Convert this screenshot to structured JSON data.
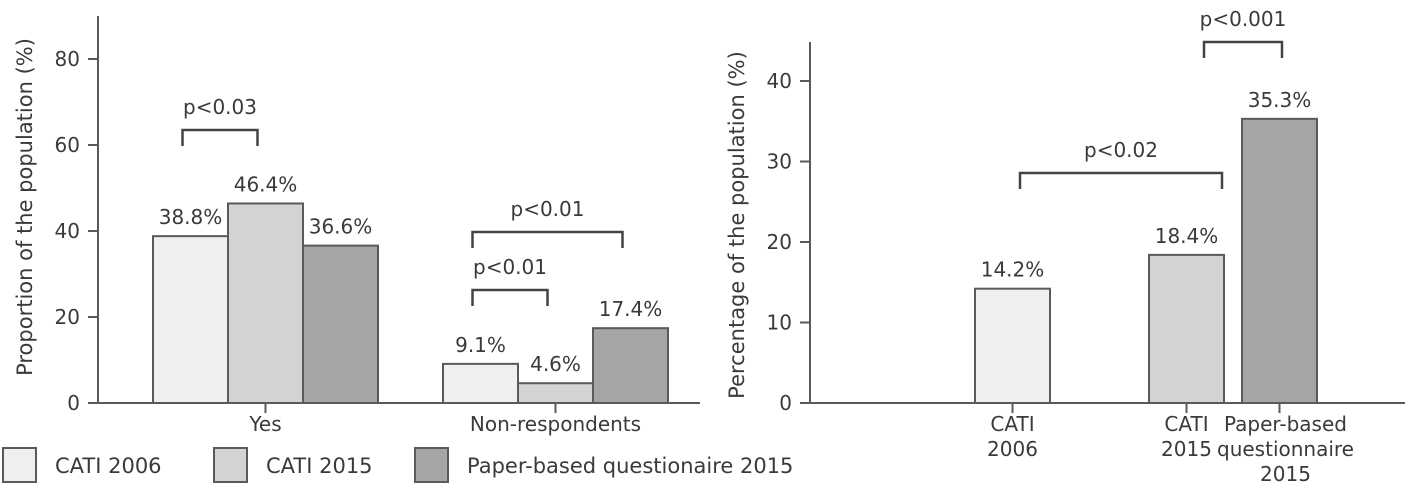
{
  "colors": {
    "series_fill": [
      "#efeff0",
      "#d3d3d4",
      "#a5a5a6"
    ],
    "stroke": "#5a5a5a",
    "text": "#3a3a3a"
  },
  "legend": [
    {
      "label": "CATI 2006"
    },
    {
      "label": "CATI 2015"
    },
    {
      "label": "Paper-based questionaire 2015"
    }
  ],
  "chart_data": [
    {
      "type": "bar",
      "ylabel": "Proportion of the population (%)",
      "xlabel": "",
      "ylim": [
        0,
        80
      ],
      "yticks": [
        "0",
        "20",
        "40",
        "60",
        "80"
      ],
      "categories": [
        "Yes",
        "Non-respondents"
      ],
      "series": [
        {
          "name": "CATI 2006",
          "values": [
            38.8,
            9.1
          ],
          "labels": [
            "38.8%",
            "9.1%"
          ]
        },
        {
          "name": "CATI 2015",
          "values": [
            46.4,
            4.6
          ],
          "labels": [
            "46.4%",
            "4.6%"
          ]
        },
        {
          "name": "Paper-based questionaire 2015",
          "values": [
            36.6,
            17.4
          ],
          "labels": [
            "36.6%",
            "17.4%"
          ]
        }
      ],
      "annotations": [
        {
          "text": "p<0.03",
          "category": "Yes",
          "from_series": 0,
          "to_series": 1
        },
        {
          "text": "p<0.01",
          "category": "Non-respondents",
          "from_series": 0,
          "to_series": 1
        },
        {
          "text": "p<0.01",
          "category": "Non-respondents",
          "from_series": 0,
          "to_series": 2
        }
      ]
    },
    {
      "type": "bar",
      "ylabel": "Percentage of the population (%)",
      "xlabel": "",
      "ylim": [
        0,
        40
      ],
      "yticks": [
        "0",
        "10",
        "20",
        "30",
        "40"
      ],
      "categories": [
        {
          "lines": [
            "CATI",
            "2006"
          ]
        },
        {
          "lines": [
            "CATI",
            "2015"
          ]
        },
        {
          "lines": [
            "Paper-based",
            "questionnaire",
            "2015"
          ]
        }
      ],
      "values": [
        14.2,
        18.4,
        35.3
      ],
      "labels": [
        "14.2%",
        "18.4%",
        "35.3%"
      ],
      "annotations": [
        {
          "text": "p<0.02",
          "from": 0,
          "to": 1
        },
        {
          "text": "p<0.001",
          "from": 1,
          "to": 2
        }
      ]
    }
  ]
}
